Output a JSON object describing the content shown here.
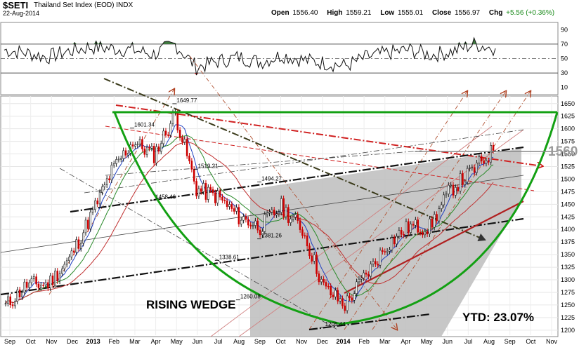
{
  "header": {
    "symbol": "$SETI",
    "name": "Thailand Set Index (EOD)",
    "exchange": "INDX",
    "date": "22-Aug-2014",
    "open_label": "Open",
    "open": "1556.40",
    "high_label": "High",
    "high": "1559.21",
    "low_label": "Low",
    "low": "1555.01",
    "close_label": "Close",
    "close": "1556.97",
    "chg_label": "Chg",
    "chg": "+5.56 (+0.36%)"
  },
  "annotations": {
    "pattern_label": "RISING WEDGE",
    "ytd_label": "YTD: 23.07%",
    "current_price_label": "1560"
  },
  "colors": {
    "price_up": "#1a1a1a",
    "price_down": "#cc0000",
    "ma_short": "#2040c0",
    "ma_mid": "#2a8a2a",
    "ma_long": "#c03030",
    "cup": "#11a011",
    "wedge_fill": "#bdbdbd",
    "rsi_fill": "#3d7a3d"
  },
  "chart_data": [
    {
      "type": "line",
      "panel": "indicator",
      "y_ticks": [
        10,
        30,
        50,
        70,
        90
      ],
      "ylim": [
        0,
        100
      ],
      "reference_lines": [
        30,
        50,
        70
      ],
      "x": [
        "Sep 2012",
        "Oct",
        "Nov",
        "Dec",
        "Jan 2013",
        "Feb",
        "Mar",
        "Apr",
        "May",
        "Jun",
        "Jul",
        "Aug",
        "Sep",
        "Oct",
        "Nov",
        "Dec",
        "Jan 2014",
        "Feb",
        "Mar",
        "Apr",
        "May",
        "Jun",
        "Jul",
        "Aug"
      ],
      "values": [
        62,
        58,
        52,
        60,
        66,
        64,
        62,
        56,
        70,
        38,
        46,
        52,
        45,
        55,
        48,
        44,
        40,
        52,
        58,
        62,
        55,
        60,
        70,
        64
      ]
    },
    {
      "type": "line",
      "panel": "price",
      "ylim": [
        1190,
        1665
      ],
      "y_ticks": [
        1200,
        1225,
        1250,
        1275,
        1300,
        1325,
        1350,
        1375,
        1400,
        1425,
        1450,
        1475,
        1500,
        1525,
        1550,
        1575,
        1600,
        1625,
        1650
      ],
      "x_ticks": [
        "Sep",
        "Oct",
        "Nov",
        "Dec",
        "2013",
        "Feb",
        "Mar",
        "Apr",
        "May",
        "Jun",
        "Jul",
        "Aug",
        "Sep",
        "Oct",
        "Nov",
        "Dec",
        "2014",
        "Feb",
        "Mar",
        "Apr",
        "May",
        "Jun",
        "Jul",
        "Aug",
        "Sep",
        "Oct",
        "Nov"
      ],
      "x": [
        "Sep 2012",
        "Oct",
        "Nov",
        "Dec",
        "Jan 2013",
        "Feb",
        "Mar",
        "Apr",
        "May",
        "Jun",
        "Jul",
        "Aug",
        "Sep",
        "Oct",
        "Nov",
        "Dec",
        "Jan 2014",
        "Feb",
        "Mar",
        "Apr",
        "May",
        "Jun",
        "Jul",
        "Aug"
      ],
      "series": [
        {
          "name": "",
          "values": [
            1248,
            1290,
            1292,
            1340,
            1425,
            1515,
            1575,
            1548,
            1630,
            1480,
            1465,
            1425,
            1405,
            1445,
            1400,
            1285,
            1250,
            1310,
            1370,
            1405,
            1405,
            1480,
            1515,
            1557
          ]
        }
      ],
      "annotations": [
        {
          "text": "1649.77",
          "x": "May 2013",
          "y": 1649.77
        },
        {
          "text": "1601.34",
          "x": "Mar 2013",
          "y": 1601.34
        },
        {
          "text": "1519.21",
          "x": "Jun 2013",
          "y": 1519.21
        },
        {
          "text": "1494.27",
          "x": "Sep 2013",
          "y": 1494.27
        },
        {
          "text": "1458.46",
          "x": "Apr 2013",
          "y": 1458.46
        },
        {
          "text": "1381.26",
          "x": "Sep 2013",
          "y": 1381.26
        },
        {
          "text": "1338.61",
          "x": "Jul 2013",
          "y": 1338.61
        },
        {
          "text": "1260.08",
          "x": "Aug 2013",
          "y": 1260.08
        },
        {
          "text": "1205.44",
          "x": "Dec 2013",
          "y": 1205.44
        }
      ]
    }
  ]
}
